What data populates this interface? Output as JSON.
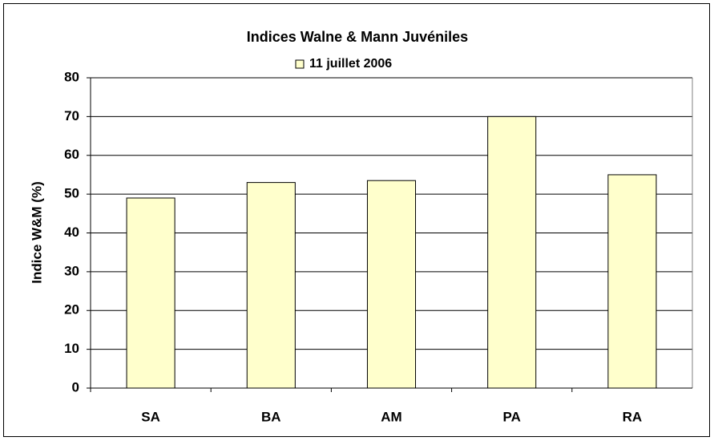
{
  "chart_data": {
    "type": "bar",
    "title": "Indices Walne & Mann Juvéniles",
    "y_label": "Indice W&M (%)",
    "categories": [
      "SA",
      "BA",
      "AM",
      "PA",
      "RA"
    ],
    "series": [
      {
        "name": "11 juillet 2006",
        "color": "#ffffcc",
        "values": [
          49,
          53,
          53.5,
          70,
          55
        ]
      }
    ],
    "ylim": [
      0,
      80
    ],
    "yticks": [
      0,
      10,
      20,
      30,
      40,
      50,
      60,
      70,
      80
    ],
    "grid": true,
    "legend": "top"
  }
}
